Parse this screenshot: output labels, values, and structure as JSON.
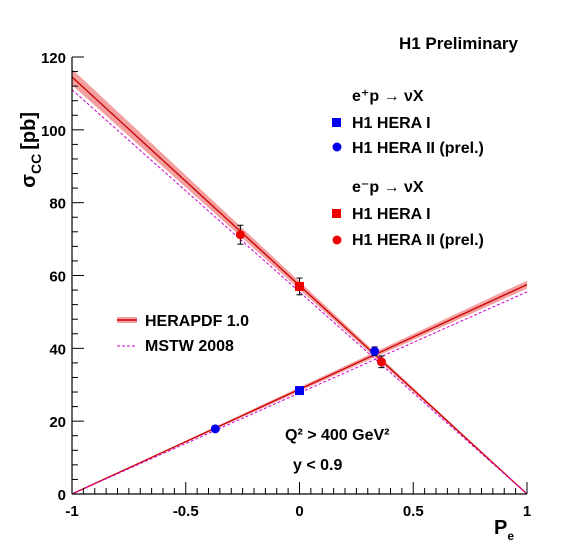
{
  "chart_data": {
    "type": "line",
    "title": "H1 Preliminary",
    "xlabel": "P",
    "xlabel_sub": "e",
    "ylabel": "σ",
    "ylabel_sub": "CC",
    "ylabel_unit": "[pb]",
    "xlim": [
      -1,
      1
    ],
    "ylim": [
      0,
      120
    ],
    "x_ticks": [
      -1,
      -0.5,
      0,
      0.5,
      1
    ],
    "x_tick_labels": [
      "-1",
      "-0.5",
      "0",
      "0.5",
      "1"
    ],
    "y_ticks": [
      0,
      20,
      40,
      60,
      80,
      100,
      120
    ],
    "y_tick_labels": [
      "0",
      "20",
      "40",
      "60",
      "80",
      "100",
      "120"
    ],
    "grid": false,
    "legend_process": {
      "positron": "e⁺p → νX",
      "electron": "e⁻p → νX"
    },
    "legend_entries": {
      "pos_hera1": "H1 HERA I",
      "pos_hera2": "H1 HERA II (prel.)",
      "ele_hera1": "H1 HERA I",
      "ele_hera2": "H1 HERA II (prel.)",
      "herapdf": "HERAPDF 1.0",
      "mstw": "MSTW 2008"
    },
    "annotations": {
      "q2": "Q² > 400 GeV²",
      "y": "y < 0.9"
    },
    "colors": {
      "positron": "#0000ee",
      "electron": "#ee0000",
      "herapdf_line": "#cc0000",
      "herapdf_band": "#f4a0a0",
      "mstw": "#cc00cc",
      "axis": "#000000"
    },
    "series": [
      {
        "name": "H1 HERA I",
        "process": "e+p",
        "marker": "square",
        "color": "#0000ee",
        "points": [
          {
            "x": 0.0,
            "y": 28.4,
            "err": 0.8
          }
        ]
      },
      {
        "name": "H1 HERA II (prel.)",
        "process": "e+p",
        "marker": "circle",
        "color": "#0000ee",
        "points": [
          {
            "x": -0.37,
            "y": 17.9,
            "err": 0.6
          },
          {
            "x": 0.33,
            "y": 39.2,
            "err": 1.2
          }
        ]
      },
      {
        "name": "H1 HERA I",
        "process": "e-p",
        "marker": "square",
        "color": "#ee0000",
        "points": [
          {
            "x": 0.0,
            "y": 57.0,
            "err": 2.3
          }
        ]
      },
      {
        "name": "H1 HERA II (prel.)",
        "process": "e-p",
        "marker": "circle",
        "color": "#ee0000",
        "points": [
          {
            "x": -0.26,
            "y": 71.2,
            "err": 2.6
          },
          {
            "x": 0.36,
            "y": 36.3,
            "err": 1.6
          }
        ]
      }
    ],
    "curves": [
      {
        "name": "HERAPDF 1.0",
        "process": "e-p",
        "style": "band",
        "x": [
          -1,
          1
        ],
        "y": [
          114.5,
          0
        ],
        "band": [
          2.2,
          0
        ]
      },
      {
        "name": "HERAPDF 1.0",
        "process": "e+p",
        "style": "band",
        "x": [
          -1,
          1
        ],
        "y": [
          0,
          57.5
        ],
        "band": [
          0,
          1.1
        ]
      },
      {
        "name": "MSTW 2008",
        "process": "e-p",
        "style": "dashed",
        "x": [
          -1,
          1
        ],
        "y": [
          111.0,
          0
        ]
      },
      {
        "name": "MSTW 2008",
        "process": "e+p",
        "style": "dashed",
        "x": [
          -1,
          1
        ],
        "y": [
          0,
          55.5
        ]
      }
    ]
  }
}
